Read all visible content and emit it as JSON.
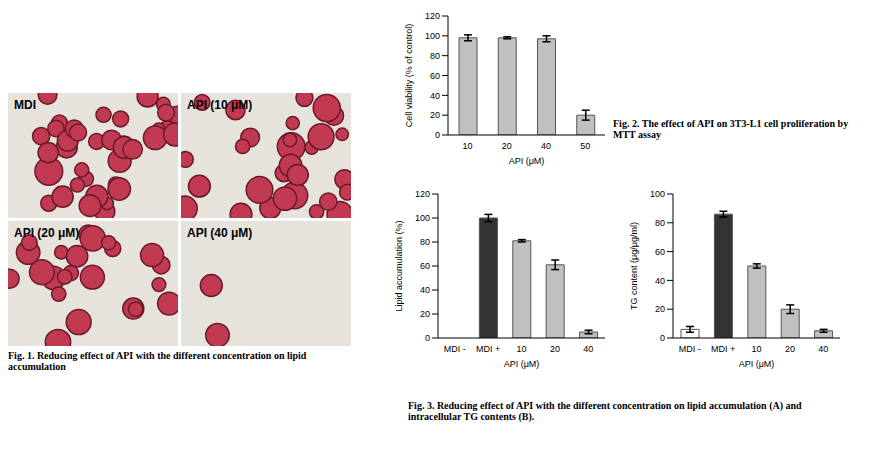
{
  "image": {
    "panels": [
      "MDI",
      "API (10 μM)",
      "API (20 μM)",
      "API (40 μM)"
    ]
  },
  "captions": {
    "fig1": "Fig. 1. Reducing effect of API with the different concentration on lipid accumulation",
    "fig2": "Fig. 2. The effect of API on 3T3-L1 cell proliferation by MTT assay",
    "fig3": "Fig. 3. Reducing effect of API with the different concentration on lipid accumulation (A) and intracellular TG contents (B)."
  },
  "chart_data": [
    {
      "type": "bar",
      "y_label": "Cell viability (% of control)",
      "x_label": "API (μM)",
      "categories": [
        "10",
        "20",
        "40",
        "50"
      ],
      "values": [
        98,
        98,
        97,
        20
      ],
      "errors": [
        3,
        1,
        3,
        5
      ],
      "color": "#c0c0c0",
      "ylim": [
        0,
        120
      ],
      "yticks": [
        0,
        20,
        40,
        60,
        80,
        100,
        120
      ]
    },
    {
      "type": "bar",
      "y_label": "Lipid accumulation (%)",
      "x_label": "API (μM)",
      "categories": [
        "MDI -",
        "MDI +",
        "10",
        "20",
        "40"
      ],
      "values": [
        0,
        100,
        81,
        61,
        5
      ],
      "errors": [
        2,
        3,
        1,
        4,
        1.5
      ],
      "colors": [
        "#ffffff",
        "#333333",
        "#c0c0c0",
        "#c0c0c0",
        "#c0c0c0"
      ],
      "ylim": [
        0,
        120
      ],
      "yticks": [
        0,
        20,
        40,
        60,
        80,
        100,
        120
      ]
    },
    {
      "type": "bar",
      "y_label": "TG content (μg/μg/ml)",
      "x_label": "API (μM)",
      "categories": [
        "MDI -",
        "MDI +",
        "10",
        "20",
        "40"
      ],
      "values": [
        6,
        86,
        50,
        20,
        5
      ],
      "errors": [
        2,
        2,
        1.5,
        3,
        1
      ],
      "colors": [
        "#ffffff",
        "#333333",
        "#c0c0c0",
        "#c0c0c0",
        "#c0c0c0"
      ],
      "ylim": [
        0,
        100
      ],
      "yticks": [
        0,
        20,
        40,
        60,
        80,
        100
      ]
    }
  ]
}
